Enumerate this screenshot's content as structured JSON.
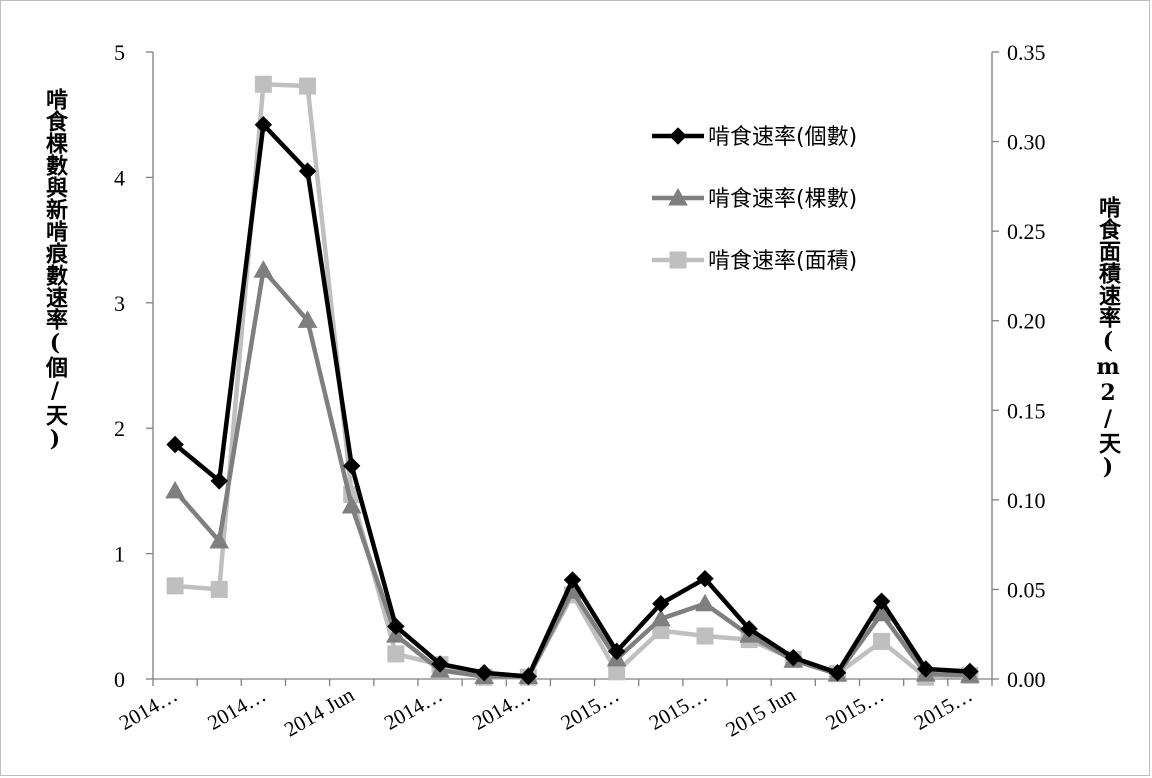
{
  "chart_data": {
    "type": "line",
    "categories": [
      "2014…",
      "",
      "2014…",
      "",
      "2014 Jun",
      "",
      "2014…",
      "",
      "2014…",
      "",
      "2015…",
      "",
      "2015…",
      "",
      "2015 Jun",
      "",
      "2015…",
      "",
      "2015…"
    ],
    "y_left": {
      "label": "啃食棵數與新啃痕數速率(個/天)",
      "ylim": [
        0,
        5
      ],
      "ticks": [
        "0",
        "1",
        "2",
        "3",
        "4",
        "5"
      ]
    },
    "y_right": {
      "label": "啃食面積速率(m2/天)",
      "ylim": [
        0,
        0.35
      ],
      "ticks": [
        "0.00",
        "0.05",
        "0.10",
        "0.15",
        "0.20",
        "0.25",
        "0.30",
        "0.35"
      ]
    },
    "legend_position": "top-right",
    "series": [
      {
        "name": "啃食速率(個數)",
        "axis": "left",
        "color": "#000000",
        "marker": "diamond",
        "values": [
          1.87,
          1.58,
          4.42,
          4.05,
          1.7,
          0.42,
          0.12,
          0.05,
          0.02,
          0.79,
          0.22,
          0.6,
          0.8,
          0.4,
          0.17,
          0.05,
          0.62,
          0.08,
          0.06
        ]
      },
      {
        "name": "啃食速率(棵數)",
        "axis": "left",
        "color": "#7f7f7f",
        "marker": "triangle",
        "values": [
          1.5,
          1.1,
          3.26,
          2.86,
          1.38,
          0.35,
          0.07,
          0.02,
          0.02,
          0.7,
          0.16,
          0.48,
          0.6,
          0.35,
          0.15,
          0.04,
          0.52,
          0.04,
          0.03
        ]
      },
      {
        "name": "啃食速率(面積)",
        "axis": "right",
        "color": "#bfbfbf",
        "marker": "square",
        "values": [
          0.052,
          0.05,
          0.332,
          0.331,
          0.103,
          0.014,
          0.008,
          0.001,
          0.001,
          0.047,
          0.004,
          0.027,
          0.024,
          0.022,
          0.011,
          0.003,
          0.021,
          0.001,
          0.002
        ]
      }
    ]
  }
}
